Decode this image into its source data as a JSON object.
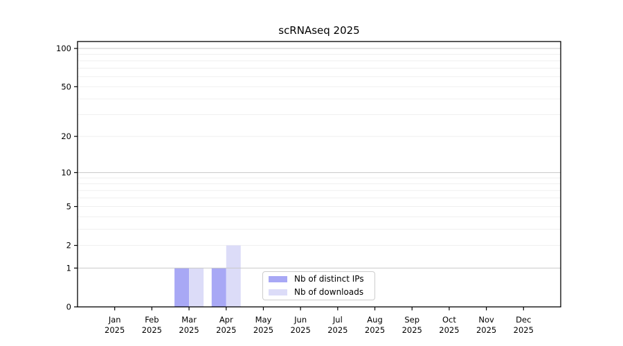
{
  "chart_data": {
    "type": "bar",
    "title": "scRNAseq 2025",
    "categories": [
      "Jan",
      "Feb",
      "Mar",
      "Apr",
      "May",
      "Jun",
      "Jul",
      "Aug",
      "Sep",
      "Oct",
      "Nov",
      "Dec"
    ],
    "category_year": "2025",
    "series": [
      {
        "name": "Nb of distinct IPs",
        "color": "#a8a8f5",
        "values": [
          0,
          0,
          1,
          1,
          0,
          0,
          0,
          0,
          0,
          0,
          0,
          0
        ]
      },
      {
        "name": "Nb of downloads",
        "color": "#dcdcf8",
        "values": [
          0,
          0,
          1,
          2,
          0,
          0,
          0,
          0,
          0,
          0,
          0,
          0
        ]
      }
    ],
    "xlabel": "",
    "ylabel": "",
    "y_scale": "log1p",
    "ylim": [
      0,
      113
    ],
    "y_ticks": [
      0,
      1,
      2,
      5,
      10,
      20,
      50,
      100
    ],
    "y_major_grid": [
      1,
      10,
      100
    ],
    "y_minor_grid": [
      2,
      3,
      4,
      5,
      6,
      7,
      8,
      9,
      20,
      30,
      40,
      50,
      60,
      70,
      80,
      90
    ],
    "grid": true,
    "legend_position": "lower center",
    "colors": {
      "background": "#ffffff",
      "axis": "#000000",
      "text": "#000000",
      "grid_major": "#c9c9c9",
      "grid_minor": "#efefef",
      "legend_border": "#cccccc"
    }
  }
}
